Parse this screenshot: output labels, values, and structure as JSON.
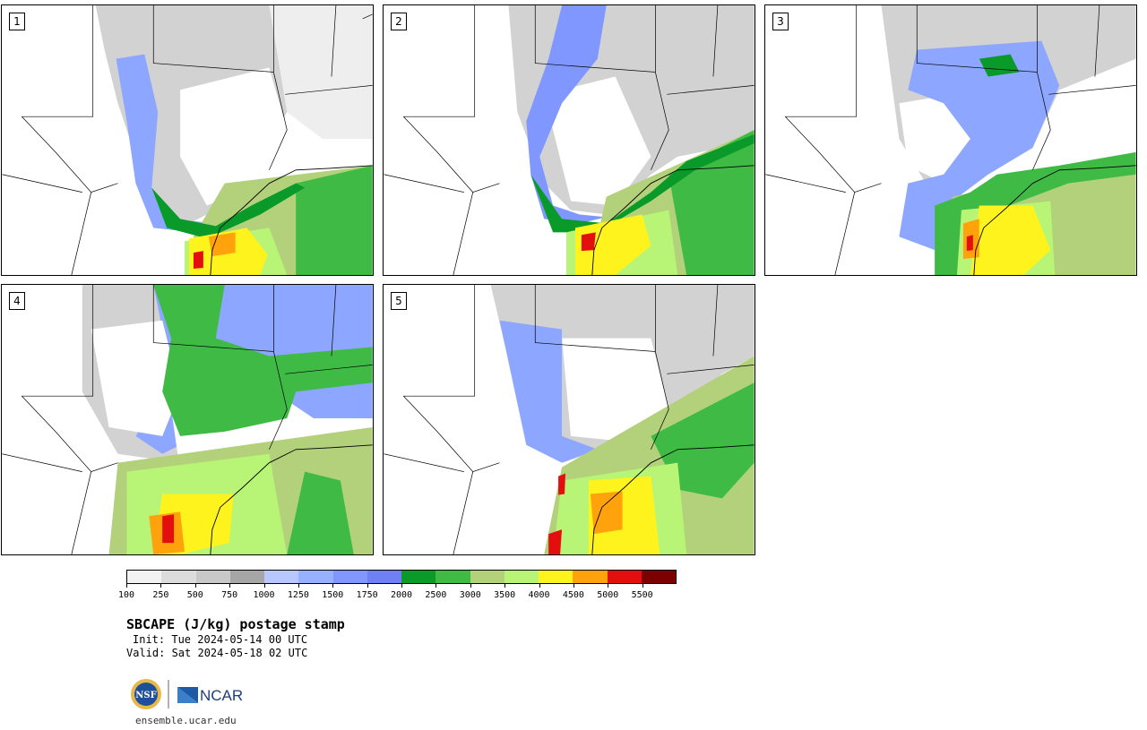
{
  "product": {
    "title": "SBCAPE (J/kg) postage stamp",
    "init_line": "Init: Tue 2024-05-14 00 UTC",
    "valid_line": "Valid: Sat 2024-05-18 02 UTC",
    "website": "ensemble.ucar.edu"
  },
  "members": [
    {
      "label": "1"
    },
    {
      "label": "2"
    },
    {
      "label": "3"
    },
    {
      "label": "4"
    },
    {
      "label": "5"
    }
  ],
  "colorbar": {
    "tick_labels": [
      "100",
      "250",
      "500",
      "750",
      "1000",
      "1250",
      "1500",
      "1750",
      "2000",
      "2500",
      "3000",
      "3500",
      "4000",
      "4500",
      "5000",
      "5500"
    ],
    "colors": [
      "#f2f2f2",
      "#dcdcdc",
      "#c8c8c8",
      "#a6a6a6",
      "#b8c8ff",
      "#96b1ff",
      "#7f97ff",
      "#6f80f5",
      "#0a9a2a",
      "#3fbb45",
      "#b2d17a",
      "#b8f577",
      "#fff31e",
      "#ffa20b",
      "#e30f0f",
      "#7d0000"
    ]
  },
  "logos": {
    "nsf": "NSF",
    "ncar": "NCAR"
  },
  "map_colors": {
    "light_gray": "#e6e6e6",
    "mid_gray": "#c8c8c8",
    "dark_gray": "#a6a6a6",
    "light_blue": "#b8c8ff",
    "blue": "#8da6ff",
    "dark_blue": "#6f80f5",
    "dark_green": "#0a9a2a",
    "green": "#3fbb45",
    "olive": "#b2d17a",
    "lime": "#b8f577",
    "yellow": "#fff31e",
    "orange": "#ffa20b",
    "red": "#e30f0f",
    "maroon": "#7d0000",
    "border_line": "#000000"
  }
}
